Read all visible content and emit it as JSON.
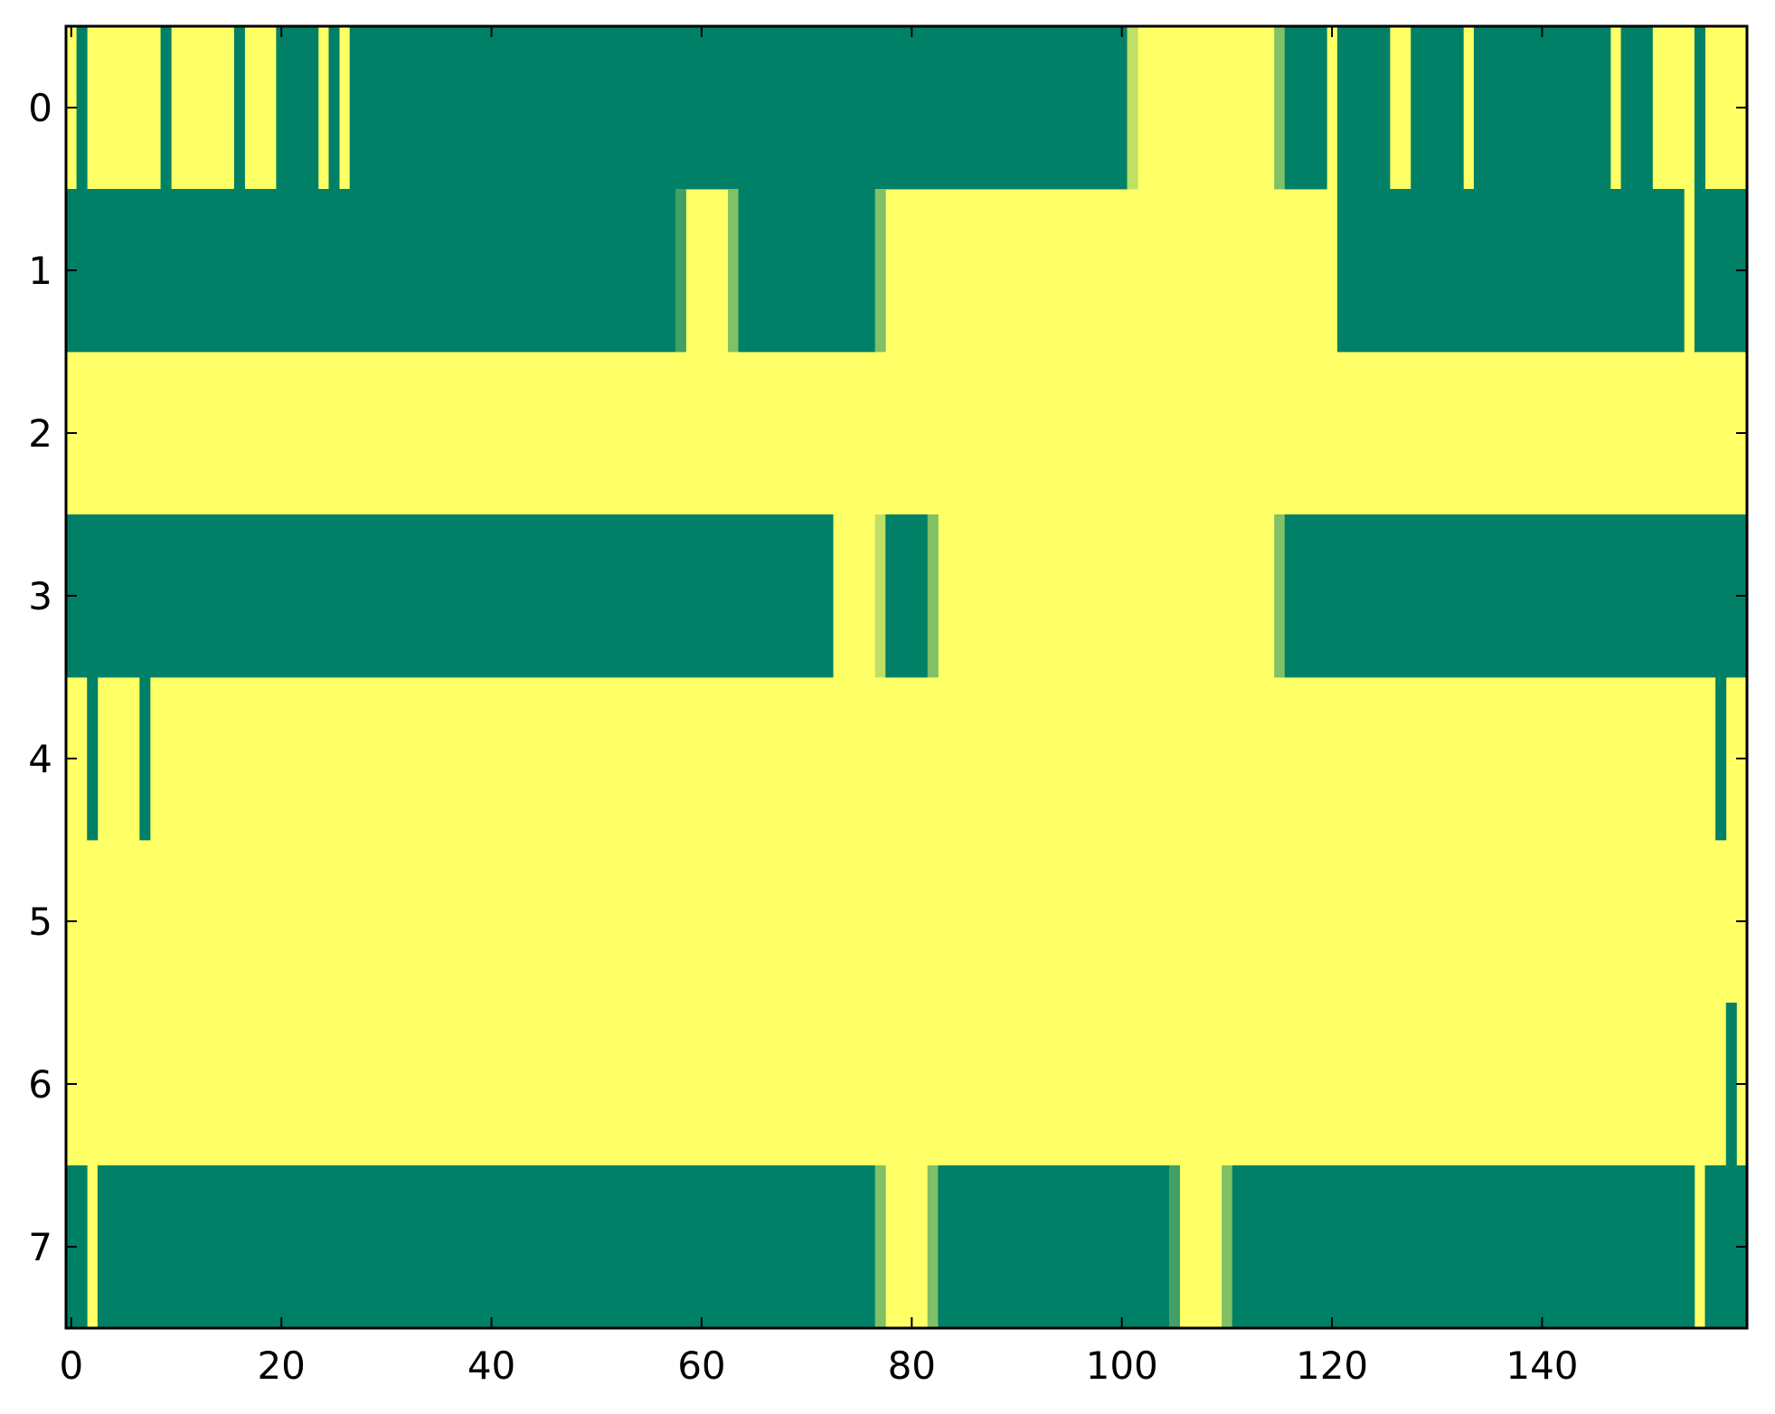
{
  "chart_data": {
    "type": "heatmap",
    "title": "",
    "xlabel": "",
    "ylabel": "",
    "xlim": [
      -0.5,
      159.5
    ],
    "ylim": [
      -0.5,
      7.5
    ],
    "y_inverted": true,
    "grid": false,
    "legend": "none",
    "x_ticks": [
      0,
      20,
      40,
      60,
      80,
      100,
      120,
      140
    ],
    "x_tick_labels": [
      "0",
      "20",
      "40",
      "60",
      "80",
      "100",
      "120",
      "140"
    ],
    "y_ticks": [
      0,
      1,
      2,
      3,
      4,
      5,
      6,
      7
    ],
    "y_tick_labels": [
      "0",
      "1",
      "2",
      "3",
      "4",
      "5",
      "6",
      "7"
    ],
    "colormap": {
      "0": "#ffff66",
      "1": "#008066",
      "0.25": "#bfdf66",
      "0.5": "#80c066",
      "0.75": "#40a066"
    },
    "n_columns": 160,
    "default_value": 0,
    "rows": [
      {
        "row": 0,
        "runs": [
          [
            1,
            1,
            1
          ],
          [
            9,
            9,
            1
          ],
          [
            16,
            16,
            1
          ],
          [
            20,
            23,
            1
          ],
          [
            25,
            25,
            1
          ],
          [
            27,
            29,
            1
          ],
          [
            30,
            100,
            1
          ],
          [
            101,
            101,
            0.25
          ],
          [
            115,
            115,
            0.5
          ],
          [
            116,
            119,
            1
          ],
          [
            121,
            125,
            1
          ],
          [
            128,
            132,
            1
          ],
          [
            134,
            146,
            1
          ],
          [
            148,
            150,
            1
          ],
          [
            155,
            155,
            1
          ]
        ]
      },
      {
        "row": 1,
        "runs": [
          [
            0,
            57,
            1
          ],
          [
            58,
            58,
            0.75
          ],
          [
            63,
            63,
            0.5
          ],
          [
            64,
            76,
            1
          ],
          [
            77,
            77,
            0.5
          ],
          [
            121,
            153,
            1
          ],
          [
            155,
            159,
            1
          ]
        ]
      },
      {
        "row": 2,
        "runs": []
      },
      {
        "row": 3,
        "runs": [
          [
            0,
            72,
            1
          ],
          [
            77,
            77,
            0.25
          ],
          [
            78,
            81,
            1
          ],
          [
            82,
            82,
            0.5
          ],
          [
            115,
            115,
            0.5
          ],
          [
            116,
            159,
            1
          ]
        ]
      },
      {
        "row": 4,
        "runs": [
          [
            2,
            2,
            1
          ],
          [
            7,
            7,
            1
          ],
          [
            157,
            157,
            1
          ]
        ]
      },
      {
        "row": 5,
        "runs": []
      },
      {
        "row": 6,
        "runs": [
          [
            158,
            158,
            1
          ]
        ]
      },
      {
        "row": 7,
        "runs": [
          [
            0,
            1,
            1
          ],
          [
            3,
            76,
            1
          ],
          [
            77,
            77,
            0.5
          ],
          [
            82,
            82,
            0.5
          ],
          [
            83,
            104,
            1
          ],
          [
            105,
            105,
            0.75
          ],
          [
            110,
            110,
            0.5
          ],
          [
            111,
            154,
            1
          ],
          [
            156,
            159,
            1
          ]
        ]
      }
    ]
  }
}
